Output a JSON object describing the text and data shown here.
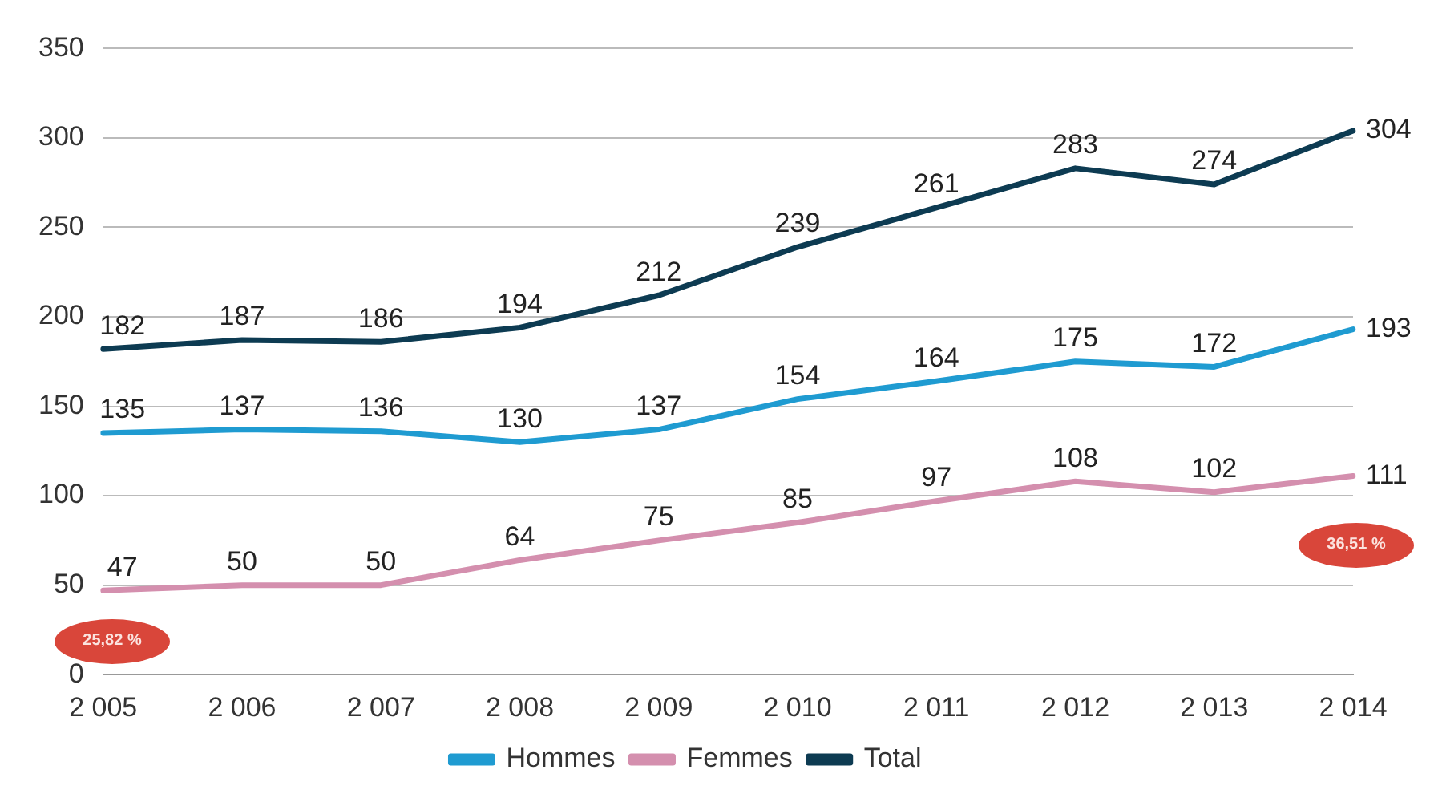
{
  "chart_data": {
    "type": "line",
    "categories": [
      "2 005",
      "2 006",
      "2 007",
      "2 008",
      "2 009",
      "2 010",
      "2 011",
      "2 012",
      "2 013",
      "2 014"
    ],
    "series": [
      {
        "name": "Hommes",
        "color": "#1f9bd1",
        "values": [
          135,
          137,
          136,
          130,
          137,
          154,
          164,
          175,
          172,
          193
        ]
      },
      {
        "name": "Femmes",
        "color": "#d48fae",
        "values": [
          47,
          50,
          50,
          64,
          75,
          85,
          97,
          108,
          102,
          111
        ]
      },
      {
        "name": "Total",
        "color": "#0d3b52",
        "values": [
          182,
          187,
          186,
          194,
          212,
          239,
          261,
          283,
          274,
          304
        ]
      }
    ],
    "ylim": [
      0,
      350
    ],
    "yticks": [
      0,
      50,
      100,
      150,
      200,
      250,
      300,
      350
    ],
    "grid": "y",
    "legend": "bottom",
    "marker": "none",
    "line_style": "solid",
    "data_labels": true,
    "annotations": [
      "25,82 %",
      "36,51 %"
    ]
  }
}
